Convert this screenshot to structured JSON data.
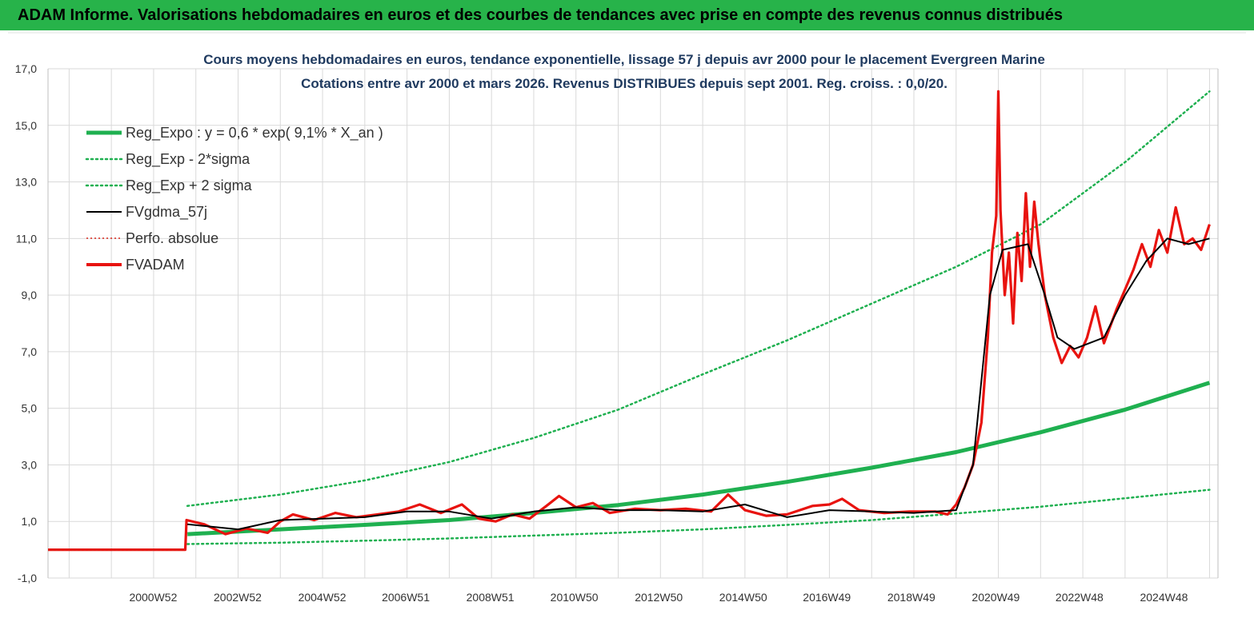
{
  "banner": {
    "title": "ADAM Informe. Valorisations hebdomadaires en euros et des courbes de tendances avec prise en compte des revenus connus distribués"
  },
  "colors": {
    "banner_bg": "#27b34a",
    "reg_expo": "#1fb050",
    "band": "#1fb050",
    "fvgdma": "#000000",
    "perfo": "#d9281c",
    "fvadam": "#e8130f",
    "grid": "#d9d9d9"
  },
  "chart_data": {
    "type": "line",
    "title_line1": "Cours moyens hebdomadaires en euros, tendance exponentielle, lissage 57 j depuis avr 2000 pour le placement Evergreen  Marine",
    "title_line2": "Cotations entre avr 2000 et mars 2026. Revenus DISTRIBUES depuis sept 2001. Reg. croiss. : 0,0/20.",
    "xlabel": "",
    "ylabel": "",
    "xlim": [
      1998.5,
      2026.2
    ],
    "ylim": [
      -1,
      17
    ],
    "y_ticks": [
      "-1,0",
      "1,0",
      "3,0",
      "5,0",
      "7,0",
      "9,0",
      "11,0",
      "13,0",
      "15,0",
      "17,0"
    ],
    "y_tick_values": [
      -1,
      1,
      3,
      5,
      7,
      9,
      11,
      13,
      15,
      17
    ],
    "x_ticks": [
      {
        "label": "2000W52",
        "x": 2000.99
      },
      {
        "label": "2002W52",
        "x": 2002.99
      },
      {
        "label": "2004W52",
        "x": 2004.99
      },
      {
        "label": "2006W51",
        "x": 2006.97
      },
      {
        "label": "2008W51",
        "x": 2008.97
      },
      {
        "label": "2010W50",
        "x": 2010.96
      },
      {
        "label": "2012W50",
        "x": 2012.96
      },
      {
        "label": "2014W50",
        "x": 2014.96
      },
      {
        "label": "2016W49",
        "x": 2016.94
      },
      {
        "label": "2018W49",
        "x": 2018.94
      },
      {
        "label": "2020W49",
        "x": 2020.94
      },
      {
        "label": "2022W48",
        "x": 2022.92
      },
      {
        "label": "2024W48",
        "x": 2024.92
      }
    ],
    "grid": true,
    "legend_position": "top-left",
    "series": [
      {
        "name": "Reg_Expo : y = 0,6 * exp( 9,1% *  X_an )",
        "style": "thick",
        "points": [
          [
            2001.8,
            0.55
          ],
          [
            2004,
            0.72
          ],
          [
            2006,
            0.88
          ],
          [
            2008,
            1.05
          ],
          [
            2010,
            1.3
          ],
          [
            2012,
            1.58
          ],
          [
            2014,
            1.95
          ],
          [
            2016,
            2.4
          ],
          [
            2018,
            2.9
          ],
          [
            2020,
            3.45
          ],
          [
            2022,
            4.15
          ],
          [
            2024,
            4.95
          ],
          [
            2026.0,
            5.9
          ]
        ]
      },
      {
        "name": "Reg_Exp - 2*sigma",
        "style": "dotted",
        "points": [
          [
            2001.8,
            0.2
          ],
          [
            2004,
            0.25
          ],
          [
            2006,
            0.32
          ],
          [
            2008,
            0.4
          ],
          [
            2010,
            0.5
          ],
          [
            2012,
            0.6
          ],
          [
            2014,
            0.72
          ],
          [
            2016,
            0.88
          ],
          [
            2018,
            1.05
          ],
          [
            2020,
            1.28
          ],
          [
            2022,
            1.52
          ],
          [
            2024,
            1.82
          ],
          [
            2026.0,
            2.12
          ]
        ]
      },
      {
        "name": "Reg_Exp + 2 sigma",
        "style": "dotted",
        "points": [
          [
            2001.8,
            1.55
          ],
          [
            2004,
            1.95
          ],
          [
            2006,
            2.45
          ],
          [
            2008,
            3.1
          ],
          [
            2010,
            3.95
          ],
          [
            2012,
            4.95
          ],
          [
            2014,
            6.2
          ],
          [
            2016,
            7.4
          ],
          [
            2018,
            8.7
          ],
          [
            2020,
            10.0
          ],
          [
            2022,
            11.5
          ],
          [
            2024,
            13.7
          ],
          [
            2026.0,
            16.2
          ]
        ]
      },
      {
        "name": "FVgdma_57j",
        "style": "thin",
        "points": [
          [
            2001.8,
            0.9
          ],
          [
            2003,
            0.72
          ],
          [
            2004,
            1.05
          ],
          [
            2005,
            1.1
          ],
          [
            2006,
            1.15
          ],
          [
            2007,
            1.35
          ],
          [
            2008,
            1.35
          ],
          [
            2009,
            1.1
          ],
          [
            2010,
            1.35
          ],
          [
            2011,
            1.5
          ],
          [
            2012,
            1.4
          ],
          [
            2013,
            1.4
          ],
          [
            2014,
            1.35
          ],
          [
            2015,
            1.6
          ],
          [
            2016,
            1.15
          ],
          [
            2017,
            1.4
          ],
          [
            2018,
            1.35
          ],
          [
            2019,
            1.3
          ],
          [
            2020,
            1.4
          ],
          [
            2020.4,
            3.0
          ],
          [
            2020.8,
            9.0
          ],
          [
            2021.1,
            10.6
          ],
          [
            2021.7,
            10.8
          ],
          [
            2022.1,
            9.0
          ],
          [
            2022.4,
            7.5
          ],
          [
            2022.8,
            7.1
          ],
          [
            2023.5,
            7.5
          ],
          [
            2024.0,
            9.0
          ],
          [
            2024.5,
            10.2
          ],
          [
            2025.0,
            11.0
          ],
          [
            2025.5,
            10.8
          ],
          [
            2026.0,
            11.0
          ]
        ]
      },
      {
        "name": "Perfo. absolue",
        "style": "dotted-red",
        "points": [
          [
            1998.5,
            0.0
          ],
          [
            2001.75,
            0.0
          ]
        ]
      },
      {
        "name": "FVADAM",
        "style": "main",
        "points": [
          [
            1998.5,
            0.0
          ],
          [
            2001.75,
            0.0
          ],
          [
            2001.78,
            1.05
          ],
          [
            2002.2,
            0.9
          ],
          [
            2002.7,
            0.55
          ],
          [
            2003.2,
            0.75
          ],
          [
            2003.7,
            0.6
          ],
          [
            2004.0,
            1.0
          ],
          [
            2004.3,
            1.25
          ],
          [
            2004.8,
            1.05
          ],
          [
            2005.3,
            1.3
          ],
          [
            2005.8,
            1.15
          ],
          [
            2006.3,
            1.25
          ],
          [
            2006.8,
            1.35
          ],
          [
            2007.3,
            1.6
          ],
          [
            2007.8,
            1.3
          ],
          [
            2008.3,
            1.6
          ],
          [
            2008.7,
            1.1
          ],
          [
            2009.1,
            1.0
          ],
          [
            2009.5,
            1.25
          ],
          [
            2009.9,
            1.1
          ],
          [
            2010.3,
            1.55
          ],
          [
            2010.6,
            1.9
          ],
          [
            2011.0,
            1.5
          ],
          [
            2011.4,
            1.65
          ],
          [
            2011.8,
            1.3
          ],
          [
            2012.4,
            1.45
          ],
          [
            2013.0,
            1.4
          ],
          [
            2013.6,
            1.45
          ],
          [
            2014.2,
            1.35
          ],
          [
            2014.6,
            1.95
          ],
          [
            2015.0,
            1.4
          ],
          [
            2015.5,
            1.2
          ],
          [
            2016.0,
            1.25
          ],
          [
            2016.6,
            1.55
          ],
          [
            2017.0,
            1.6
          ],
          [
            2017.3,
            1.8
          ],
          [
            2017.7,
            1.4
          ],
          [
            2018.3,
            1.3
          ],
          [
            2018.9,
            1.35
          ],
          [
            2019.5,
            1.35
          ],
          [
            2019.8,
            1.25
          ],
          [
            2020.0,
            1.6
          ],
          [
            2020.2,
            2.2
          ],
          [
            2020.4,
            3.0
          ],
          [
            2020.6,
            4.5
          ],
          [
            2020.75,
            7.5
          ],
          [
            2020.85,
            10.5
          ],
          [
            2020.95,
            11.8
          ],
          [
            2021.0,
            16.2
          ],
          [
            2021.05,
            12.0
          ],
          [
            2021.15,
            9.0
          ],
          [
            2021.25,
            10.5
          ],
          [
            2021.35,
            8.0
          ],
          [
            2021.45,
            11.2
          ],
          [
            2021.55,
            9.5
          ],
          [
            2021.65,
            12.6
          ],
          [
            2021.75,
            10.0
          ],
          [
            2021.85,
            12.3
          ],
          [
            2021.95,
            10.8
          ],
          [
            2022.1,
            9.0
          ],
          [
            2022.3,
            7.5
          ],
          [
            2022.5,
            6.6
          ],
          [
            2022.7,
            7.2
          ],
          [
            2022.9,
            6.8
          ],
          [
            2023.1,
            7.5
          ],
          [
            2023.3,
            8.6
          ],
          [
            2023.5,
            7.3
          ],
          [
            2023.8,
            8.5
          ],
          [
            2024.0,
            9.2
          ],
          [
            2024.2,
            9.9
          ],
          [
            2024.4,
            10.8
          ],
          [
            2024.6,
            10.0
          ],
          [
            2024.8,
            11.3
          ],
          [
            2025.0,
            10.5
          ],
          [
            2025.2,
            12.1
          ],
          [
            2025.4,
            10.8
          ],
          [
            2025.6,
            11.0
          ],
          [
            2025.8,
            10.6
          ],
          [
            2026.0,
            11.5
          ]
        ]
      }
    ]
  }
}
